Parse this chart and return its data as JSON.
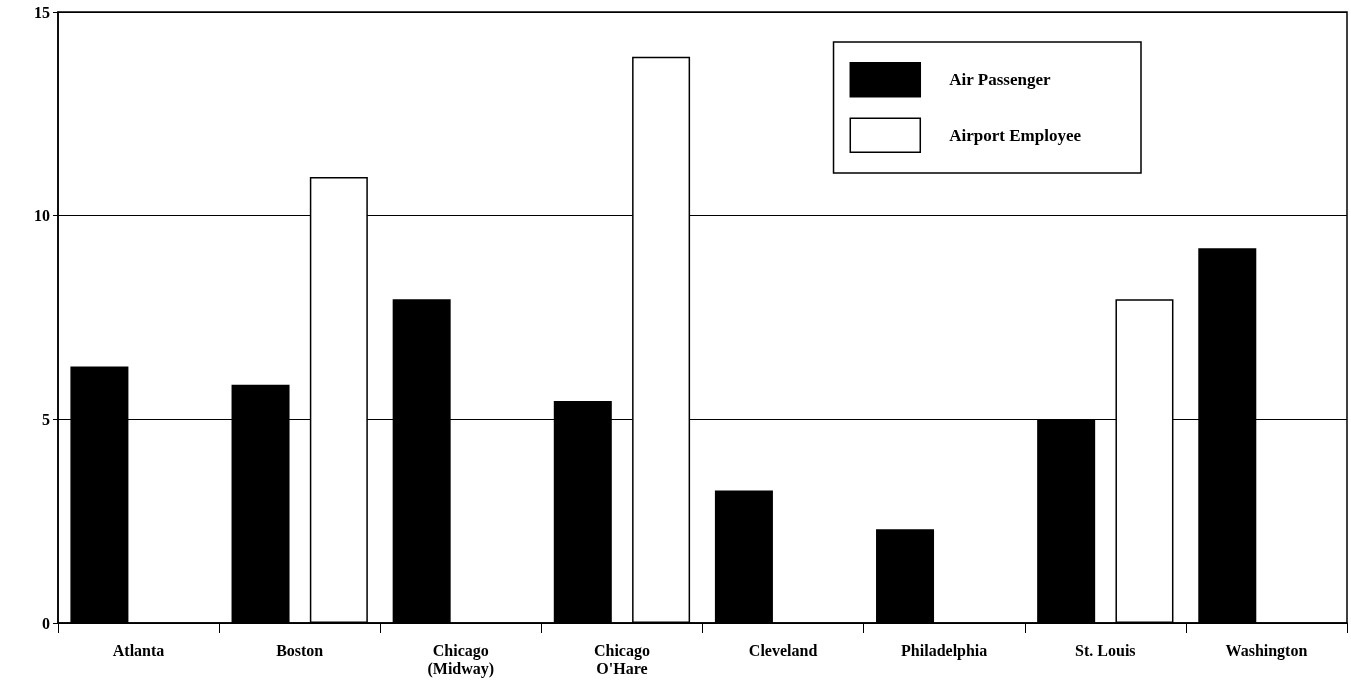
{
  "chart_data": {
    "type": "bar",
    "categories": [
      "Atlanta",
      "Boston",
      "Chicago\n(Midway)",
      "Chicago\nO'Hare",
      "Cleveland",
      "Philadelphia",
      "St. Louis",
      "Washington"
    ],
    "series": [
      {
        "name": "Air Passenger",
        "color": "#000000",
        "values": [
          6.3,
          5.85,
          7.95,
          5.45,
          3.25,
          2.3,
          5.0,
          9.2
        ]
      },
      {
        "name": "Airport Employee",
        "color": "#ffffff",
        "values": [
          null,
          10.95,
          null,
          13.9,
          null,
          null,
          7.95,
          null
        ]
      }
    ],
    "ylim": [
      0,
      15
    ],
    "yticks": [
      0,
      5,
      10,
      15
    ],
    "grid": "y",
    "legend": "top right"
  }
}
